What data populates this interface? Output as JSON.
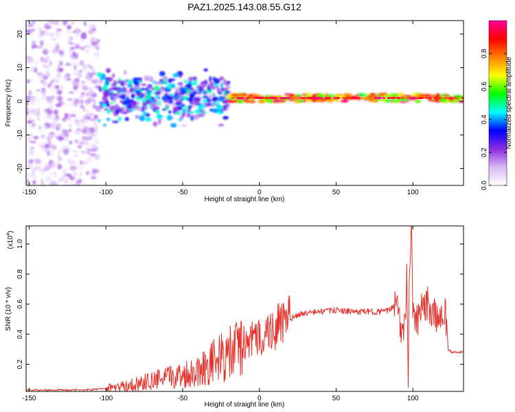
{
  "title": "PAZ1.2025.143.08.55.G12",
  "chart_data": [
    {
      "type": "heatmap",
      "title": "PAZ1.2025.143.08.55.G12",
      "xlabel": "Height of straight line (km)",
      "ylabel": "Frequency (Hz)",
      "xlim": [
        -152,
        133
      ],
      "ylim": [
        -25,
        24
      ],
      "x_ticks": [
        -150,
        -100,
        -50,
        0,
        50,
        100
      ],
      "x_tick_labels": [
        "-150",
        "-100",
        "-50",
        "0",
        "50",
        "100"
      ],
      "y_ticks": [
        -20,
        -10,
        0,
        10,
        20
      ],
      "y_tick_labels": [
        "-20",
        "-10",
        "0",
        "10",
        "20"
      ],
      "description_regions": [
        {
          "x_range": [
            -152,
            -105
          ],
          "freq_range": [
            -25,
            24
          ],
          "intensity": [
            0.0,
            0.2
          ],
          "pattern": "diffuse noise"
        },
        {
          "x_range": [
            -105,
            -20
          ],
          "freq_range": [
            -10,
            8
          ],
          "intensity": [
            0.1,
            0.5
          ],
          "pattern": "scattered energy"
        },
        {
          "x_range": [
            -20,
            133
          ],
          "freq_range": [
            -1,
            2
          ],
          "intensity": [
            0.5,
            1.0
          ],
          "pattern": "narrow band near 1 Hz"
        }
      ],
      "colorbar": {
        "label": "Normalized spectral amplitude",
        "range": [
          0,
          1
        ],
        "ticks": [
          0.0,
          0.2,
          0.4,
          0.6,
          0.8
        ],
        "tick_labels": [
          "0.0",
          "0.2",
          "0.4",
          "0.6",
          "0.8"
        ],
        "colors": [
          "#ffffff",
          "#d8b8f4",
          "#8a2be2",
          "#0000ff",
          "#00ffff",
          "#00ff00",
          "#ffff00",
          "#ff8000",
          "#ff0000",
          "#ff0099"
        ]
      }
    },
    {
      "type": "line",
      "xlabel": "Height of straight line (km)",
      "ylabel": "SNR (10 * v/v)",
      "y_scale_label": "(x10",
      "y_scale_exp": "4",
      "y_scale_close": ")",
      "xlim": [
        -152,
        133
      ],
      "ylim": [
        0.02,
        1.12
      ],
      "x_ticks": [
        -150,
        -100,
        -50,
        0,
        50,
        100
      ],
      "x_tick_labels": [
        "-150",
        "-100",
        "-50",
        "0",
        "50",
        "100"
      ],
      "y_ticks": [
        0.2,
        0.4,
        0.6,
        0.8,
        1.0
      ],
      "y_tick_labels": [
        "0.2",
        "0.4",
        "0.6",
        "0.8",
        "1.0"
      ],
      "color": "#e8302a",
      "series": [
        {
          "name": "SNR",
          "x": [
            -152,
            -140,
            -130,
            -120,
            -110,
            -100,
            -90,
            -80,
            -70,
            -60,
            -50,
            -40,
            -30,
            -20,
            -15,
            -10,
            -5,
            0,
            5,
            10,
            15,
            20,
            25,
            30,
            40,
            50,
            60,
            70,
            80,
            85,
            88,
            90,
            92,
            94,
            96,
            97,
            98,
            99,
            100,
            102,
            105,
            110,
            115,
            120,
            122,
            123,
            125,
            130,
            133
          ],
          "y": [
            0.03,
            0.03,
            0.03,
            0.03,
            0.03,
            0.04,
            0.05,
            0.07,
            0.09,
            0.11,
            0.13,
            0.16,
            0.22,
            0.26,
            0.3,
            0.34,
            0.36,
            0.38,
            0.41,
            0.44,
            0.47,
            0.5,
            0.53,
            0.54,
            0.55,
            0.56,
            0.55,
            0.55,
            0.55,
            0.56,
            0.6,
            0.68,
            0.45,
            0.35,
            0.75,
            0.15,
            0.9,
            1.1,
            0.6,
            0.45,
            0.55,
            0.6,
            0.5,
            0.55,
            0.5,
            0.3,
            0.28,
            0.28,
            0.28
          ]
        }
      ]
    }
  ]
}
